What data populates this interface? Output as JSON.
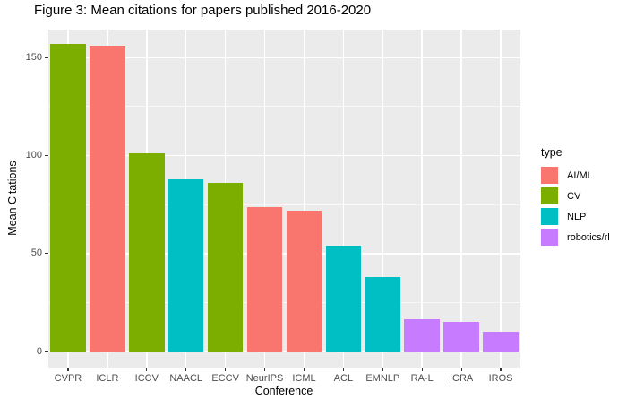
{
  "chart_data": {
    "type": "bar",
    "title": "Figure 3: Mean citations for papers published 2016-2020",
    "xlabel": "Conference",
    "ylabel": "Mean Citations",
    "categories": [
      "CVPR",
      "ICLR",
      "ICCV",
      "NAACL",
      "ECCV",
      "NeurIPS",
      "ICML",
      "ACL",
      "EMNLP",
      "RA-L",
      "ICRA",
      "IROS"
    ],
    "values": [
      157,
      156,
      101,
      88,
      86,
      73.5,
      72,
      54,
      38,
      16.5,
      15,
      10
    ],
    "bar_types": [
      "CV",
      "AI/ML",
      "CV",
      "NLP",
      "CV",
      "AI/ML",
      "AI/ML",
      "NLP",
      "NLP",
      "robotics/rl",
      "robotics/rl",
      "robotics/rl"
    ],
    "ylim": [
      0,
      157
    ],
    "yticks_major": [
      0,
      50,
      100,
      150
    ],
    "yticks_minor": [
      25,
      75,
      125
    ],
    "grid": "on",
    "legend": {
      "title": "type",
      "position": "right",
      "entries": [
        {
          "label": "AI/ML",
          "color": "#F8766D"
        },
        {
          "label": "CV",
          "color": "#7CAE00"
        },
        {
          "label": "NLP",
          "color": "#00BFC4"
        },
        {
          "label": "robotics/rl",
          "color": "#C77CFF"
        }
      ]
    },
    "colors": {
      "AI/ML": "#F8766D",
      "CV": "#7CAE00",
      "NLP": "#00BFC4",
      "robotics/rl": "#C77CFF"
    },
    "panel_background": "#EBEBEB",
    "gridline_color": "#FFFFFF"
  }
}
